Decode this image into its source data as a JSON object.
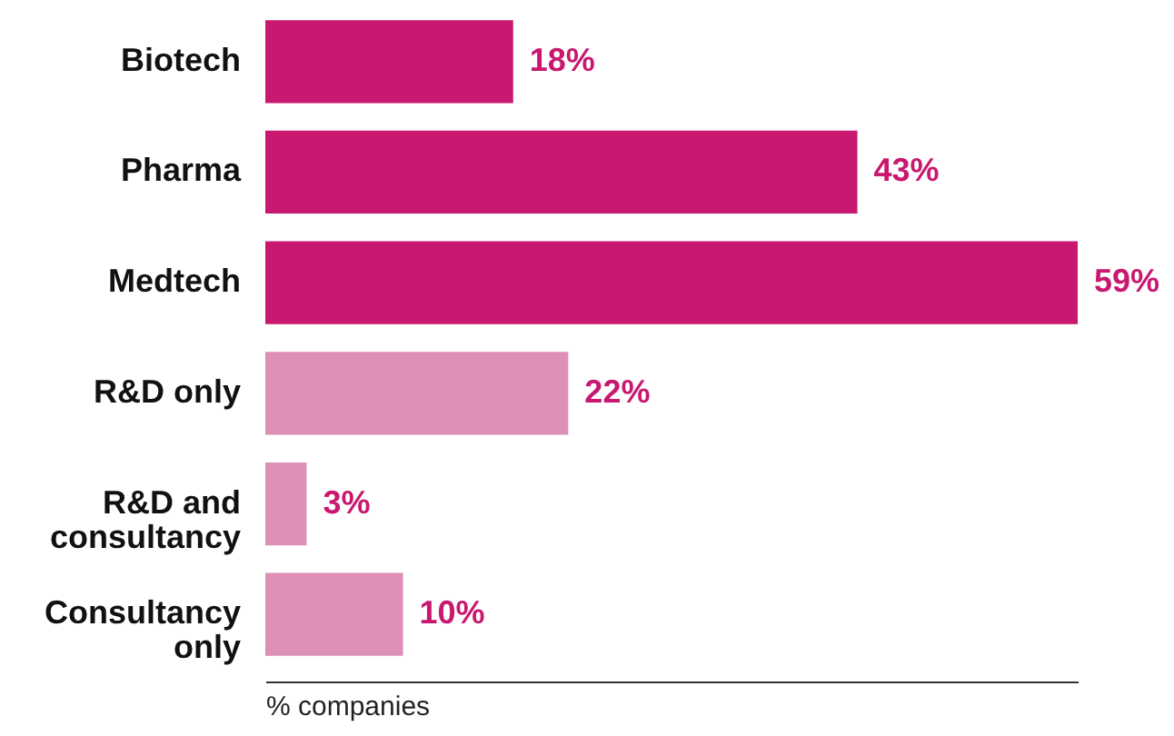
{
  "chart_data": {
    "type": "bar",
    "orientation": "horizontal",
    "categories": [
      "Biotech",
      "Pharma",
      "Medtech",
      "R&D only",
      "R&D and consultancy",
      "Consultancy only"
    ],
    "values": [
      18,
      43,
      59,
      22,
      3,
      10
    ],
    "value_labels": [
      "18%",
      "43%",
      "59%",
      "22%",
      "3%",
      "10%"
    ],
    "colors": [
      "#c8186f",
      "#c8186f",
      "#c8186f",
      "#dd8fb8",
      "#dd8fb8",
      "#dd8fb8"
    ],
    "xlabel": "% companies",
    "tick_labels": "y"
  }
}
